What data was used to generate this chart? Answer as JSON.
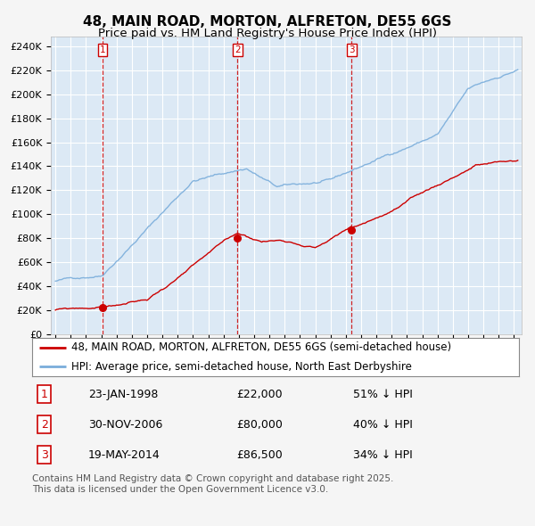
{
  "title": "48, MAIN ROAD, MORTON, ALFRETON, DE55 6GS",
  "subtitle": "Price paid vs. HM Land Registry's House Price Index (HPI)",
  "ylabel_values": [
    "£0",
    "£20K",
    "£40K",
    "£60K",
    "£80K",
    "£100K",
    "£120K",
    "£140K",
    "£160K",
    "£180K",
    "£200K",
    "£220K",
    "£240K"
  ],
  "yticks": [
    0,
    20000,
    40000,
    60000,
    80000,
    100000,
    120000,
    140000,
    160000,
    180000,
    200000,
    220000,
    240000
  ],
  "ylim": [
    0,
    248000
  ],
  "xlim_start": 1994.7,
  "xlim_end": 2025.5,
  "background_color": "#dce9f5",
  "plot_bg_color": "#dce9f5",
  "fig_bg_color": "#f5f5f5",
  "red_line_color": "#cc0000",
  "blue_line_color": "#7aaddb",
  "grid_color": "#ffffff",
  "vline_color": "#cc0000",
  "sale1_date": 1998.07,
  "sale1_price": 22000,
  "sale1_label": "1",
  "sale2_date": 2006.92,
  "sale2_price": 80000,
  "sale2_label": "2",
  "sale3_date": 2014.38,
  "sale3_price": 86500,
  "sale3_label": "3",
  "legend_red": "48, MAIN ROAD, MORTON, ALFRETON, DE55 6GS (semi-detached house)",
  "legend_blue": "HPI: Average price, semi-detached house, North East Derbyshire",
  "table_rows": [
    [
      "1",
      "23-JAN-1998",
      "£22,000",
      "51% ↓ HPI"
    ],
    [
      "2",
      "30-NOV-2006",
      "£80,000",
      "40% ↓ HPI"
    ],
    [
      "3",
      "19-MAY-2014",
      "£86,500",
      "34% ↓ HPI"
    ]
  ],
  "footnote": "Contains HM Land Registry data © Crown copyright and database right 2025.\nThis data is licensed under the Open Government Licence v3.0.",
  "title_fontsize": 11,
  "subtitle_fontsize": 9.5,
  "tick_fontsize": 8,
  "legend_fontsize": 8.5,
  "table_fontsize": 9,
  "footnote_fontsize": 7.5
}
